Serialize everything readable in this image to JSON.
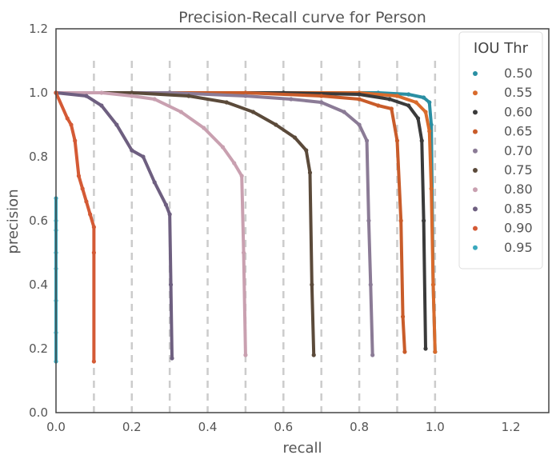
{
  "chart_data": {
    "type": "line",
    "title": "Precision-Recall curve for Person",
    "xlabel": "recall",
    "ylabel": "precision",
    "xlim": [
      0.0,
      1.3
    ],
    "ylim": [
      0.0,
      1.2
    ],
    "xticks": [
      "0.0",
      "0.2",
      "0.4",
      "0.6",
      "0.8",
      "1.0",
      "1.2"
    ],
    "yticks": [
      "0.0",
      "0.2",
      "0.4",
      "0.6",
      "0.8",
      "1.0",
      "1.2"
    ],
    "grid": "vertical dashed at recall thresholds",
    "threshold_lines": [
      0.1,
      0.2,
      0.3,
      0.4,
      0.5,
      0.6,
      0.7,
      0.8,
      0.9,
      1.0
    ],
    "legend": {
      "title": "IOU Thr",
      "position": "top-right"
    },
    "series": [
      {
        "name": "0.50",
        "color": "#2a8fa3",
        "x": [
          0.0,
          0.3,
          0.6,
          0.85,
          0.93,
          0.97,
          0.985,
          0.99,
          0.995,
          1.0
        ],
        "y": [
          1.0,
          1.0,
          1.0,
          1.0,
          0.995,
          0.985,
          0.97,
          0.9,
          0.4,
          0.19
        ]
      },
      {
        "name": "0.55",
        "color": "#d96b2c",
        "x": [
          0.0,
          0.3,
          0.6,
          0.8,
          0.9,
          0.95,
          0.975,
          0.985,
          0.99,
          0.995,
          1.0
        ],
        "y": [
          1.0,
          1.0,
          1.0,
          1.0,
          0.99,
          0.97,
          0.94,
          0.88,
          0.7,
          0.4,
          0.19
        ]
      },
      {
        "name": "0.60",
        "color": "#3a3a3a",
        "x": [
          0.0,
          0.3,
          0.6,
          0.8,
          0.88,
          0.93,
          0.955,
          0.965,
          0.97,
          0.975
        ],
        "y": [
          1.0,
          1.0,
          1.0,
          0.995,
          0.98,
          0.96,
          0.92,
          0.85,
          0.6,
          0.2
        ]
      },
      {
        "name": "0.65",
        "color": "#c95c2a",
        "x": [
          0.0,
          0.3,
          0.5,
          0.7,
          0.8,
          0.85,
          0.885,
          0.9,
          0.91,
          0.915,
          0.92
        ],
        "y": [
          1.0,
          1.0,
          1.0,
          0.99,
          0.98,
          0.96,
          0.95,
          0.85,
          0.6,
          0.3,
          0.19
        ]
      },
      {
        "name": "0.70",
        "color": "#8b7b96",
        "x": [
          0.0,
          0.3,
          0.5,
          0.62,
          0.7,
          0.76,
          0.8,
          0.82,
          0.825,
          0.83,
          0.835
        ],
        "y": [
          1.0,
          1.0,
          0.99,
          0.98,
          0.97,
          0.94,
          0.9,
          0.85,
          0.6,
          0.4,
          0.18
        ]
      },
      {
        "name": "0.75",
        "color": "#5b4a3a",
        "x": [
          0.0,
          0.2,
          0.35,
          0.45,
          0.52,
          0.58,
          0.63,
          0.66,
          0.67,
          0.675,
          0.68
        ],
        "y": [
          1.0,
          1.0,
          0.99,
          0.97,
          0.94,
          0.9,
          0.86,
          0.82,
          0.75,
          0.4,
          0.18
        ]
      },
      {
        "name": "0.80",
        "color": "#c9a0b0",
        "x": [
          0.0,
          0.12,
          0.2,
          0.26,
          0.33,
          0.39,
          0.44,
          0.47,
          0.49,
          0.495,
          0.5
        ],
        "y": [
          1.0,
          1.0,
          0.99,
          0.98,
          0.94,
          0.89,
          0.83,
          0.78,
          0.74,
          0.5,
          0.18
        ]
      },
      {
        "name": "0.85",
        "color": "#6e5f80",
        "x": [
          0.0,
          0.08,
          0.12,
          0.16,
          0.2,
          0.23,
          0.26,
          0.29,
          0.3,
          0.303,
          0.306
        ],
        "y": [
          1.0,
          0.99,
          0.96,
          0.9,
          0.82,
          0.8,
          0.72,
          0.65,
          0.62,
          0.4,
          0.17
        ]
      },
      {
        "name": "0.90",
        "color": "#d45a35",
        "x": [
          0.0,
          0.03,
          0.04,
          0.05,
          0.06,
          0.07,
          0.08,
          0.09,
          0.1,
          0.1,
          0.1
        ],
        "y": [
          1.0,
          0.92,
          0.9,
          0.85,
          0.74,
          0.7,
          0.66,
          0.62,
          0.58,
          0.5,
          0.16
        ]
      },
      {
        "name": "0.95",
        "color": "#3aa8bd",
        "x": [
          0.0,
          0.0,
          0.0,
          0.0,
          0.0,
          0.0,
          0.0,
          0.0
        ],
        "y": [
          0.67,
          0.6,
          0.57,
          0.5,
          0.45,
          0.35,
          0.25,
          0.16
        ]
      }
    ]
  }
}
